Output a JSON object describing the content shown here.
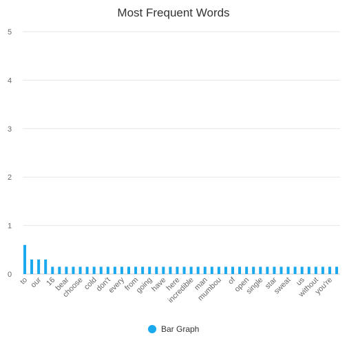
{
  "chart_data": {
    "type": "bar",
    "title": "Most Frequent Words",
    "xlabel": "",
    "ylabel": "",
    "ylim": [
      0,
      5
    ],
    "yticks": [
      0,
      1,
      2,
      3,
      4,
      5
    ],
    "grid": true,
    "legend_position": "bottom",
    "colors": {
      "bar": "#1aa8ef",
      "grid": "#e6e6e6",
      "text": "#666666",
      "title": "#333333"
    },
    "categories": [
      "to",
      "our",
      "16",
      "bear",
      "choose",
      "cold",
      "don't",
      "every",
      "from",
      "going",
      "have",
      "here",
      "incredible",
      "man",
      "mumbou",
      "of",
      "open",
      "single",
      "star",
      "sweat",
      "us",
      "without",
      "you're"
    ],
    "series": [
      {
        "name": "Bar Graph",
        "values": [
          0.6,
          0.3,
          0.3,
          0.15,
          0.15,
          0.15,
          0.15,
          0.15,
          0.15,
          0.15,
          0.15,
          0.15,
          0.15,
          0.15,
          0.15,
          0.15,
          0.15,
          0.15,
          0.15,
          0.15,
          0.15,
          0.15,
          0.15
        ]
      }
    ],
    "bars_per_category": 2,
    "bar_values_all": [
      0.6,
      0.3,
      0.3,
      0.3,
      0.15,
      0.15,
      0.15,
      0.15,
      0.15,
      0.15,
      0.15,
      0.15,
      0.15,
      0.15,
      0.15,
      0.15,
      0.15,
      0.15,
      0.15,
      0.15,
      0.15,
      0.15,
      0.15,
      0.15,
      0.15,
      0.15,
      0.15,
      0.15,
      0.15,
      0.15,
      0.15,
      0.15,
      0.15,
      0.15,
      0.15,
      0.15,
      0.15,
      0.15,
      0.15,
      0.15,
      0.15,
      0.15,
      0.15,
      0.15,
      0.15,
      0.15
    ]
  }
}
